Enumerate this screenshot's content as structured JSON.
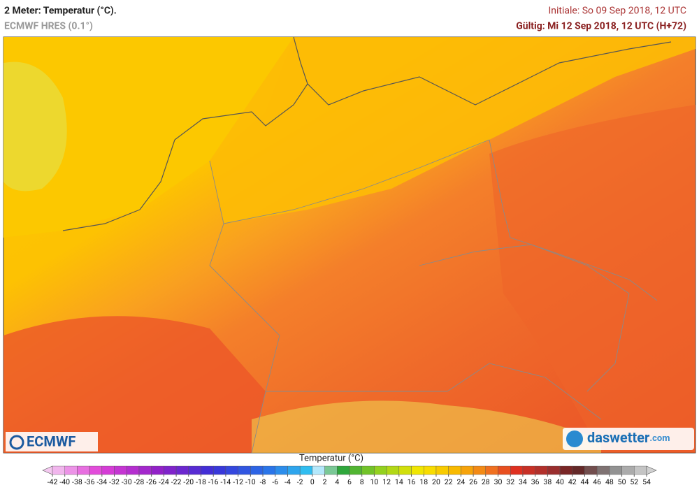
{
  "header": {
    "title": "2 Meter: Temperatur (°C).",
    "subtitle": "ECMWF HRES (0.1°)",
    "initiale": "Initiale: So 09 Sep 2018, 12 UTC",
    "valid": "Gültig: Mi 12 Sep 2018, 12 UTC (H+72)"
  },
  "logos": {
    "left": "ECMWF",
    "right_main": "daswetter",
    "right_suffix": ".com"
  },
  "colorbar": {
    "title": "Temperatur (°C)",
    "ticks": [
      -42,
      -40,
      -38,
      -36,
      -34,
      -32,
      -30,
      -28,
      -26,
      -24,
      -22,
      -20,
      -18,
      -16,
      -14,
      -12,
      -10,
      -8,
      -6,
      -4,
      -2,
      0,
      2,
      4,
      6,
      8,
      10,
      12,
      14,
      16,
      18,
      20,
      22,
      24,
      26,
      28,
      30,
      32,
      34,
      36,
      38,
      40,
      42,
      44,
      46,
      48,
      50,
      52,
      54
    ]
  }
}
